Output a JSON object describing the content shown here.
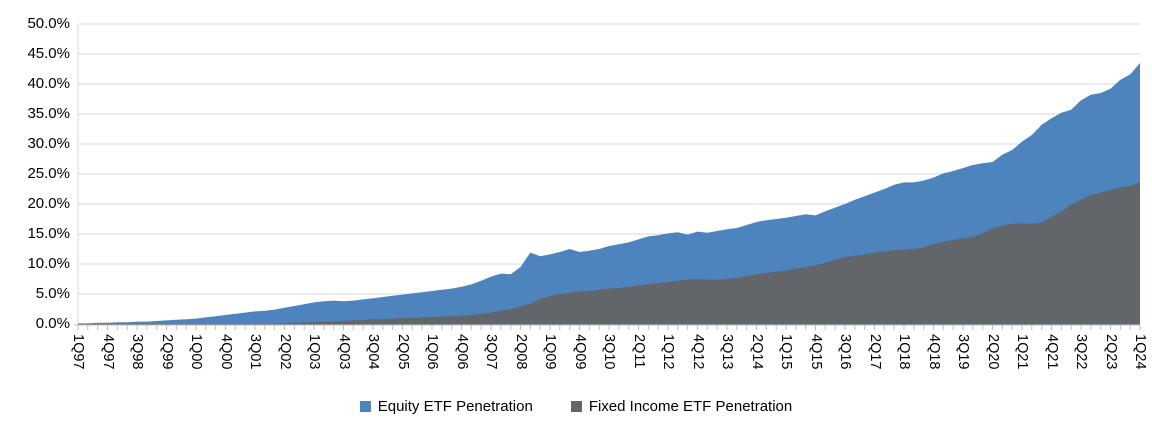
{
  "chart_data": {
    "type": "area",
    "title": "",
    "xlabel": "",
    "ylabel": "",
    "ylim": [
      0,
      50
    ],
    "y_tick_step": 5,
    "y_tick_labels": [
      "0.0%",
      "5.0%",
      "10.0%",
      "15.0%",
      "20.0%",
      "25.0%",
      "30.0%",
      "35.0%",
      "40.0%",
      "45.0%",
      "50.0%"
    ],
    "x_start": "1Q97",
    "x_end": "1Q24",
    "x_tick_labels": [
      "1Q97",
      "4Q97",
      "3Q98",
      "2Q99",
      "1Q00",
      "4Q00",
      "3Q01",
      "2Q02",
      "1Q03",
      "4Q03",
      "3Q04",
      "2Q05",
      "1Q06",
      "4Q06",
      "3Q07",
      "2Q08",
      "1Q09",
      "4Q09",
      "3Q10",
      "2Q11",
      "1Q12",
      "4Q12",
      "3Q13",
      "2Q14",
      "1Q15",
      "4Q15",
      "3Q16",
      "2Q17",
      "1Q18",
      "4Q18",
      "3Q19",
      "2Q20",
      "1Q21",
      "4Q21",
      "3Q22",
      "2Q23",
      "1Q24"
    ],
    "x_label_every_n_quarters": 3,
    "grid": true,
    "legend_position": "bottom",
    "overlap_mode": "overlaid (not stacked); fixed income drawn in front of equity",
    "series": [
      {
        "name": "Equity ETF Penetration",
        "color": "#4E84BD",
        "values": [
          0.1,
          0.1,
          0.2,
          0.2,
          0.3,
          0.3,
          0.4,
          0.4,
          0.5,
          0.6,
          0.7,
          0.8,
          0.9,
          1.1,
          1.3,
          1.5,
          1.7,
          1.9,
          2.1,
          2.2,
          2.4,
          2.7,
          3.0,
          3.3,
          3.6,
          3.8,
          3.9,
          3.8,
          3.9,
          4.1,
          4.3,
          4.5,
          4.7,
          4.9,
          5.1,
          5.3,
          5.5,
          5.7,
          5.9,
          6.2,
          6.6,
          7.2,
          7.9,
          8.4,
          8.3,
          9.5,
          11.9,
          11.3,
          11.6,
          12.0,
          12.5,
          12.0,
          12.2,
          12.5,
          13.0,
          13.3,
          13.6,
          14.1,
          14.6,
          14.8,
          15.1,
          15.3,
          14.9,
          15.4,
          15.2,
          15.5,
          15.8,
          16.0,
          16.5,
          17.0,
          17.3,
          17.5,
          17.7,
          18.0,
          18.3,
          18.1,
          18.8,
          19.4,
          20.0,
          20.7,
          21.3,
          21.9,
          22.5,
          23.2,
          23.6,
          23.6,
          23.9,
          24.4,
          25.1,
          25.5,
          26.0,
          26.5,
          26.8,
          27.0,
          28.2,
          29.0,
          30.4,
          31.5,
          33.2,
          34.3,
          35.2,
          35.7,
          37.3,
          38.2,
          38.5,
          39.2,
          40.7,
          41.6,
          43.5
        ]
      },
      {
        "name": "Fixed Income ETF Penetration",
        "color": "#626569",
        "values": [
          0,
          0,
          0,
          0,
          0,
          0,
          0,
          0,
          0,
          0,
          0,
          0,
          0,
          0,
          0,
          0,
          0,
          0,
          0,
          0,
          0.0,
          0.1,
          0.2,
          0.3,
          0.3,
          0.4,
          0.4,
          0.5,
          0.6,
          0.7,
          0.8,
          0.8,
          0.9,
          1.0,
          1.0,
          1.1,
          1.2,
          1.2,
          1.3,
          1.4,
          1.5,
          1.7,
          1.9,
          2.2,
          2.5,
          2.9,
          3.4,
          4.2,
          4.6,
          5.0,
          5.2,
          5.4,
          5.5,
          5.7,
          5.9,
          6.0,
          6.2,
          6.4,
          6.6,
          6.8,
          7.0,
          7.2,
          7.4,
          7.5,
          7.4,
          7.4,
          7.5,
          7.7,
          8.0,
          8.3,
          8.5,
          8.7,
          8.9,
          9.2,
          9.5,
          9.8,
          10.2,
          10.7,
          11.1,
          11.4,
          11.6,
          11.9,
          12.1,
          12.3,
          12.4,
          12.5,
          12.8,
          13.3,
          13.7,
          14.0,
          14.3,
          14.5,
          15.1,
          16.0,
          16.4,
          16.7,
          16.8,
          16.7,
          16.9,
          17.9,
          18.7,
          19.9,
          20.7,
          21.5,
          21.9,
          22.3,
          22.8,
          23.0,
          23.6
        ]
      }
    ],
    "colors": {
      "gridline": "#D9D9D9",
      "axis_line": "#BFBFBF",
      "tick": "#BFBFBF",
      "text": "#000000",
      "background": "#FFFFFF"
    }
  },
  "legend": {
    "items": [
      {
        "label": "Equity ETF Penetration",
        "color": "#4E84BD"
      },
      {
        "label": "Fixed Income ETF Penetration",
        "color": "#626569"
      }
    ]
  }
}
